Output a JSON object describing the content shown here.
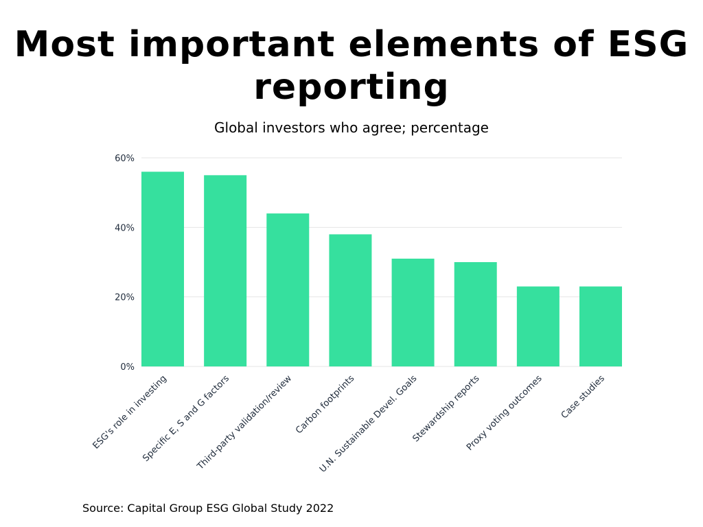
{
  "title": "Most important elements of ESG reporting",
  "subtitle": "Global investors who agree; percentage",
  "source": "Source: Capital Group ESG Global Study 2022",
  "colors": {
    "bar": "#36e09e",
    "grid": "#e5e5e5",
    "tick_text": "#1e2a3a"
  },
  "chart_data": {
    "type": "bar",
    "categories": [
      "ESG's role in investing",
      "Specific E, S and G factors",
      "Third-party validation/review",
      "Carbon footprints",
      "U.N. Sustainable Devel. Goals",
      "Stewardship reports",
      "Proxy voting outcomes",
      "Case studies"
    ],
    "values": [
      56,
      55,
      44,
      38,
      31,
      30,
      23,
      23
    ],
    "ylim": [
      0,
      60
    ],
    "yticks": [
      0,
      20,
      40,
      60
    ],
    "ytick_labels": [
      "0%",
      "20%",
      "40%",
      "60%"
    ],
    "xlabel": "",
    "ylabel": "",
    "grid": true,
    "legend": "none"
  }
}
